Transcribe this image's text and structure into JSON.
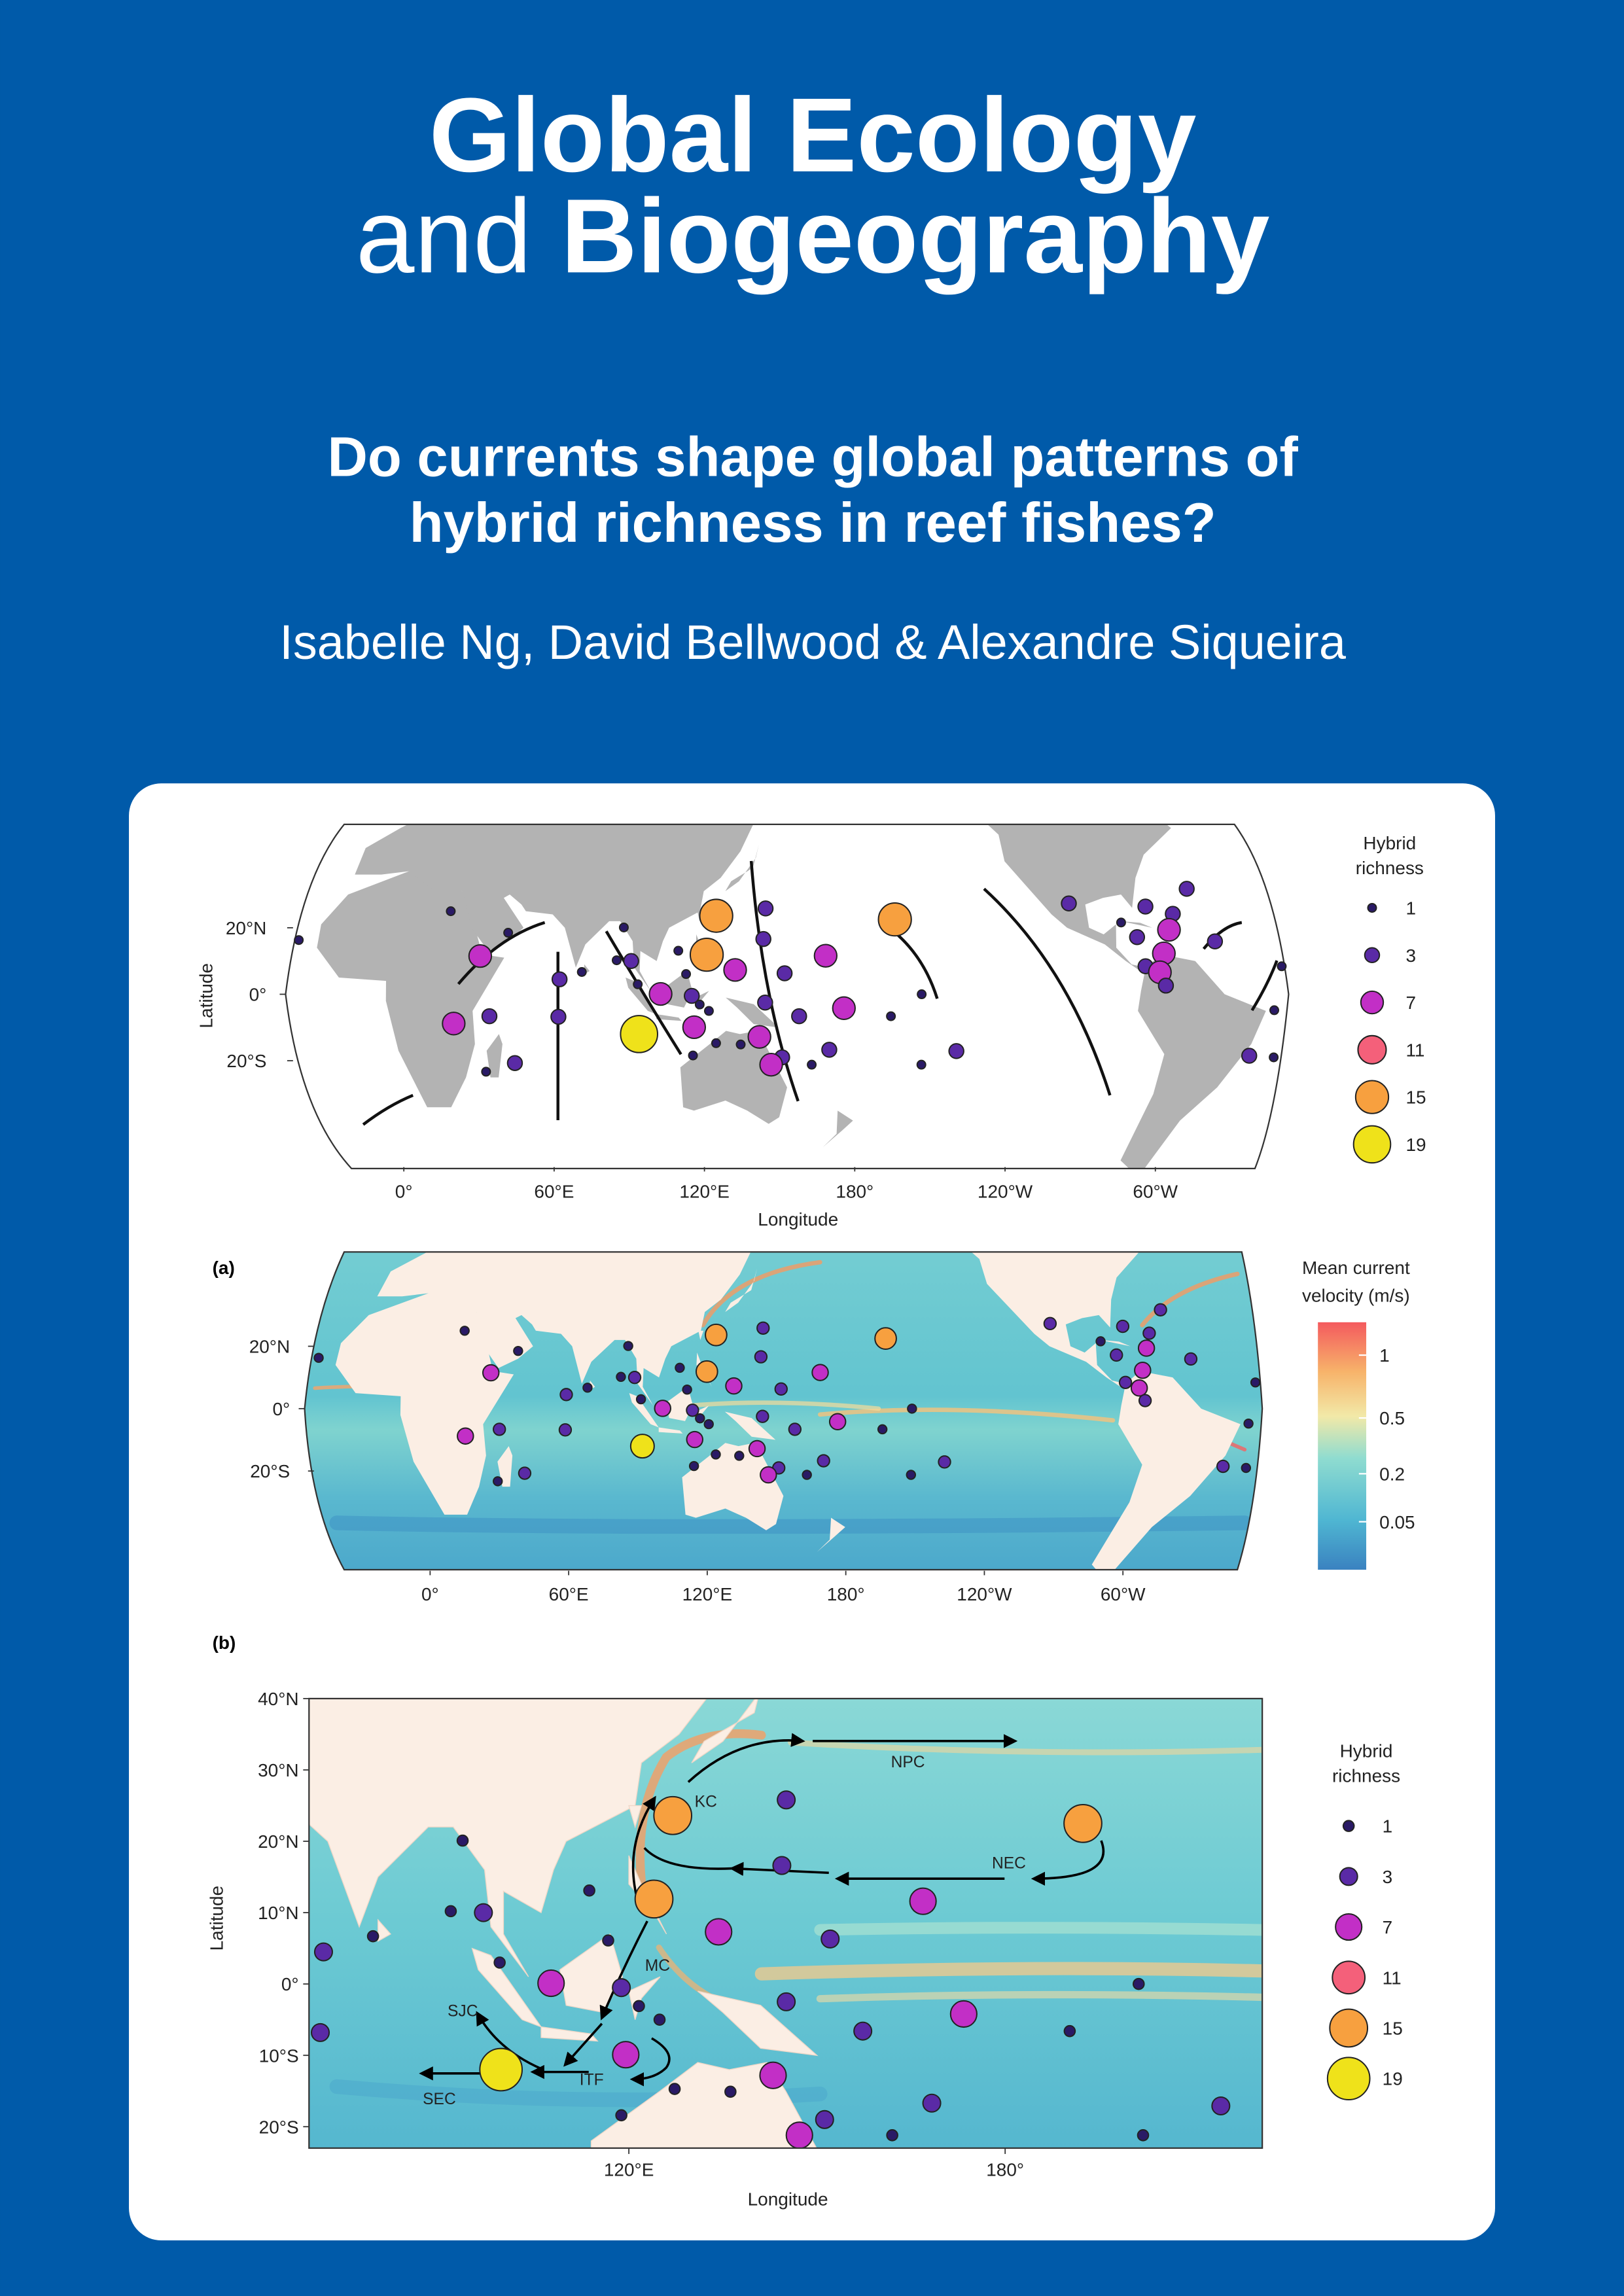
{
  "journal": {
    "line1": "Global Ecology",
    "line2_light": "and",
    "line2_bold": "Biogeography"
  },
  "question": [
    "Do currents shape global patterns of",
    "hybrid richness in reef fishes?"
  ],
  "authors": "Isabelle Ng, David Bellwood & Alexandre Siqueira",
  "figure": {
    "legend": {
      "title": [
        "Hybrid",
        "richness"
      ],
      "items": [
        {
          "value": 1,
          "color": "#2a1a66"
        },
        {
          "value": 3,
          "color": "#5a2aa6"
        },
        {
          "value": 7,
          "color": "#c22fc6"
        },
        {
          "value": 11,
          "color": "#f4607a"
        },
        {
          "value": 15,
          "color": "#f7a03f"
        },
        {
          "value": 19,
          "color": "#efe21a"
        }
      ]
    },
    "world_map": {
      "xlabel": "Longitude",
      "ylabel": "Latitude",
      "xticks": [
        {
          "value": 0,
          "label": "0°"
        },
        {
          "value": 60,
          "label": "60°E"
        },
        {
          "value": 120,
          "label": "120°E"
        },
        {
          "value": 180,
          "label": "180°"
        },
        {
          "value": -120,
          "label": "120°W"
        },
        {
          "value": -60,
          "label": "60°W"
        }
      ],
      "yticks": [
        {
          "value": 20,
          "label": "20°N"
        },
        {
          "value": 0,
          "label": "0°"
        },
        {
          "value": -20,
          "label": "20°S"
        }
      ]
    },
    "panel_a": {
      "label": "(a)",
      "xticks": [
        {
          "value": 0,
          "label": "0°"
        },
        {
          "value": 60,
          "label": "60°E"
        },
        {
          "value": 120,
          "label": "120°E"
        },
        {
          "value": 180,
          "label": "180°"
        },
        {
          "value": -120,
          "label": "120°W"
        },
        {
          "value": -60,
          "label": "60°W"
        }
      ],
      "yticks": [
        {
          "value": 20,
          "label": "20°N"
        },
        {
          "value": 0,
          "label": "0°"
        },
        {
          "value": -20,
          "label": "20°S"
        }
      ],
      "colorbar": {
        "title": [
          "Mean current",
          "velocity (m/s)"
        ],
        "scale": "sqrt",
        "lim": [
          0,
          1.33
        ],
        "ticks": [
          1,
          0.5,
          0.2,
          0.05
        ]
      }
    },
    "panel_b": {
      "label": "(b)",
      "xlabel": "Longitude",
      "ylabel": "Latitude",
      "xlim": [
        69,
        221
      ],
      "ylim": [
        -23,
        40
      ],
      "xticks": [
        {
          "value": 120,
          "label": "120°E"
        },
        {
          "value": 180,
          "label": "180°"
        }
      ],
      "yticks": [
        {
          "value": 40,
          "label": "40°N"
        },
        {
          "value": 30,
          "label": "30°N"
        },
        {
          "value": 20,
          "label": "20°N"
        },
        {
          "value": 10,
          "label": "10°N"
        },
        {
          "value": 0,
          "label": "0°"
        },
        {
          "value": -10,
          "label": "10°S"
        },
        {
          "value": -20,
          "label": "20°S"
        }
      ],
      "currents": [
        "NPC",
        "KC",
        "NEC",
        "MC",
        "SJC",
        "ITF",
        "SEC"
      ]
    },
    "sites": [
      {
        "lon": 71.3,
        "lat": 4.5,
        "richness": 3
      },
      {
        "lon": 70.8,
        "lat": -6.8,
        "richness": 3
      },
      {
        "lon": 79.2,
        "lat": 6.7,
        "richness": 1
      },
      {
        "lon": 93.5,
        "lat": 20.1,
        "richness": 1
      },
      {
        "lon": 91.6,
        "lat": 10.2,
        "richness": 1
      },
      {
        "lon": 96.8,
        "lat": 10,
        "richness": 3
      },
      {
        "lon": 99.4,
        "lat": 3,
        "richness": 1
      },
      {
        "lon": 107.6,
        "lat": 0.1,
        "richness": 7
      },
      {
        "lon": 99.6,
        "lat": -12,
        "richness": 19
      },
      {
        "lon": 113.7,
        "lat": 13.1,
        "richness": 1
      },
      {
        "lon": 116.7,
        "lat": 6.1,
        "richness": 1
      },
      {
        "lon": 118.8,
        "lat": -0.5,
        "richness": 3
      },
      {
        "lon": 119.5,
        "lat": -9.9,
        "richness": 7
      },
      {
        "lon": 118.8,
        "lat": -18.4,
        "richness": 1
      },
      {
        "lon": 127,
        "lat": 23.6,
        "richness": 15
      },
      {
        "lon": 124,
        "lat": 11.9,
        "richness": 15
      },
      {
        "lon": 134.3,
        "lat": 7.3,
        "richness": 7
      },
      {
        "lon": 121.6,
        "lat": -3.1,
        "richness": 1
      },
      {
        "lon": 124.9,
        "lat": -5,
        "richness": 1
      },
      {
        "lon": 127.3,
        "lat": -14.7,
        "richness": 1
      },
      {
        "lon": 145.1,
        "lat": 25.8,
        "richness": 3
      },
      {
        "lon": 144.4,
        "lat": 16.6,
        "richness": 3
      },
      {
        "lon": 152.1,
        "lat": 6.3,
        "richness": 3
      },
      {
        "lon": 145.1,
        "lat": -2.5,
        "richness": 3
      },
      {
        "lon": 157.3,
        "lat": -6.6,
        "richness": 3
      },
      {
        "lon": 143,
        "lat": -12.8,
        "richness": 7
      },
      {
        "lon": 151.2,
        "lat": -19,
        "richness": 3
      },
      {
        "lon": 147.2,
        "lat": -21.2,
        "richness": 7
      },
      {
        "lon": 136.2,
        "lat": -15.1,
        "richness": 1
      },
      {
        "lon": 166.9,
        "lat": 11.6,
        "richness": 7
      },
      {
        "lon": 173.4,
        "lat": -4.2,
        "richness": 7
      },
      {
        "lon": 168.3,
        "lat": -16.7,
        "richness": 3
      },
      {
        "lon": 162,
        "lat": -21.2,
        "richness": 1
      },
      {
        "lon": 192.4,
        "lat": 22.5,
        "richness": 15
      },
      {
        "lon": 190.3,
        "lat": -6.6,
        "richness": 1
      },
      {
        "lon": 201.3,
        "lat": 0,
        "richness": 1
      },
      {
        "lon": 214.4,
        "lat": -17.1,
        "richness": 3
      },
      {
        "lon": 202,
        "lat": -21.2,
        "richness": 1
      },
      {
        "lon": -24,
        "lat": 16.3,
        "richness": 1
      },
      {
        "lon": 29.4,
        "lat": 25,
        "richness": 1
      },
      {
        "lon": 42.3,
        "lat": 11.5,
        "richness": 7
      },
      {
        "lon": 51.6,
        "lat": 18.5,
        "richness": 1
      },
      {
        "lon": 33,
        "lat": -8.8,
        "richness": 7
      },
      {
        "lon": 46,
        "lat": -6.6,
        "richness": 3
      },
      {
        "lon": 42.7,
        "lat": -23.3,
        "richness": 1
      },
      {
        "lon": 53.7,
        "lat": -20.7,
        "richness": 3
      },
      {
        "lon": -103,
        "lat": 27.3,
        "richness": 3
      },
      {
        "lon": -75,
        "lat": 26.4,
        "richness": 3
      },
      {
        "lon": -58,
        "lat": 31.7,
        "richness": 3
      },
      {
        "lon": -65.5,
        "lat": 24.2,
        "richness": 3
      },
      {
        "lon": -68,
        "lat": 19.4,
        "richness": 7
      },
      {
        "lon": -80,
        "lat": 17.2,
        "richness": 3
      },
      {
        "lon": -85,
        "lat": 21.6,
        "richness": 1
      },
      {
        "lon": -78,
        "lat": 8.4,
        "richness": 3
      },
      {
        "lon": -71,
        "lat": 12.3,
        "richness": 7
      },
      {
        "lon": -73,
        "lat": 6.6,
        "richness": 7
      },
      {
        "lon": -71,
        "lat": 2.6,
        "richness": 3
      },
      {
        "lon": -52,
        "lat": 15.9,
        "richness": 3
      },
      {
        "lon": -29,
        "lat": 8.4,
        "richness": 1
      },
      {
        "lon": -32,
        "lat": -4.8,
        "richness": 1
      },
      {
        "lon": -39,
        "lat": -18.5,
        "richness": 3
      },
      {
        "lon": -30,
        "lat": -19,
        "richness": 1
      }
    ]
  }
}
